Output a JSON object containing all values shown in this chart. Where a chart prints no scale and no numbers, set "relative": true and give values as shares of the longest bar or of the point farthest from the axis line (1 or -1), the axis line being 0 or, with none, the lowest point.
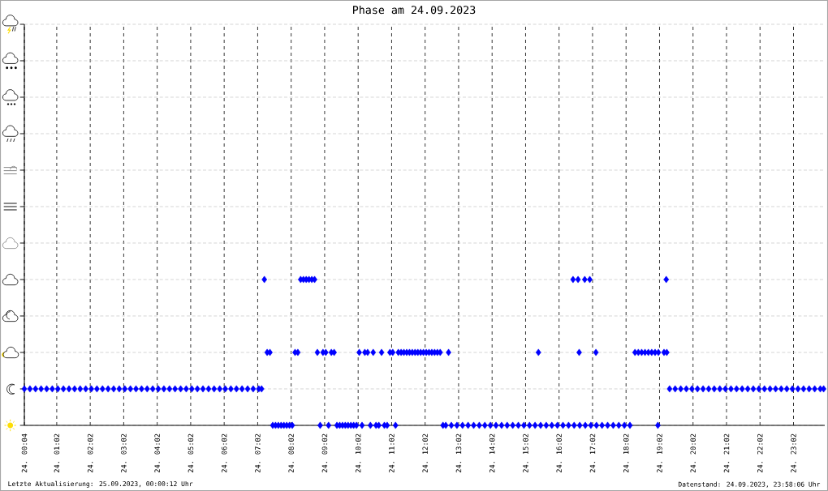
{
  "chart_data": {
    "type": "scatter",
    "title": "Phase am 24.09.2023",
    "annotations": [
      "Letzte Aktualisierung: 25.09.2023, 00:00:12 Uhr",
      "Datenstand: 24.09.2023, 23:58:06 Uhr"
    ],
    "x": [
      "2023-09-24T00:04",
      "2023-09-24T00:14",
      "2023-09-24T00:24",
      "2023-09-24T00:34",
      "2023-09-24T00:44",
      "2023-09-24T00:54",
      "2023-09-24T01:04",
      "2023-09-24T01:14",
      "2023-09-24T01:24",
      "2023-09-24T01:34",
      "2023-09-24T01:44",
      "2023-09-24T01:54",
      "2023-09-24T02:04",
      "2023-09-24T02:14",
      "2023-09-24T02:24",
      "2023-09-24T02:34",
      "2023-09-24T02:44",
      "2023-09-24T02:54",
      "2023-09-24T03:04",
      "2023-09-24T03:14",
      "2023-09-24T03:24",
      "2023-09-24T03:34",
      "2023-09-24T03:44",
      "2023-09-24T03:54",
      "2023-09-24T04:04",
      "2023-09-24T04:14",
      "2023-09-24T04:24",
      "2023-09-24T04:34",
      "2023-09-24T04:44",
      "2023-09-24T04:54",
      "2023-09-24T05:04",
      "2023-09-24T05:14",
      "2023-09-24T05:24",
      "2023-09-24T05:34",
      "2023-09-24T05:44",
      "2023-09-24T05:54",
      "2023-09-24T06:04",
      "2023-09-24T06:14",
      "2023-09-24T06:24",
      "2023-09-24T06:34",
      "2023-09-24T06:44",
      "2023-09-24T06:54",
      "2023-09-24T07:04",
      "2023-09-24T07:09",
      "2023-09-24T07:14",
      "2023-09-24T07:19",
      "2023-09-24T07:24",
      "2023-09-24T07:29",
      "2023-09-24T07:34",
      "2023-09-24T07:39",
      "2023-09-24T07:44",
      "2023-09-24T07:49",
      "2023-09-24T07:54",
      "2023-09-24T07:59",
      "2023-09-24T08:04",
      "2023-09-24T08:09",
      "2023-09-24T08:14",
      "2023-09-24T08:19",
      "2023-09-24T08:24",
      "2023-09-24T08:29",
      "2023-09-24T08:34",
      "2023-09-24T08:39",
      "2023-09-24T08:44",
      "2023-09-24T08:49",
      "2023-09-24T08:54",
      "2023-09-24T08:59",
      "2023-09-24T09:04",
      "2023-09-24T09:09",
      "2023-09-24T09:14",
      "2023-09-24T09:19",
      "2023-09-24T09:24",
      "2023-09-24T09:29",
      "2023-09-24T09:34",
      "2023-09-24T09:39",
      "2023-09-24T09:44",
      "2023-09-24T09:49",
      "2023-09-24T09:54",
      "2023-09-24T09:59",
      "2023-09-24T10:04",
      "2023-09-24T10:09",
      "2023-09-24T10:14",
      "2023-09-24T10:19",
      "2023-09-24T10:24",
      "2023-09-24T10:29",
      "2023-09-24T10:34",
      "2023-09-24T10:39",
      "2023-09-24T10:44",
      "2023-09-24T10:49",
      "2023-09-24T10:54",
      "2023-09-24T10:59",
      "2023-09-24T11:04",
      "2023-09-24T11:09",
      "2023-09-24T11:14",
      "2023-09-24T11:19",
      "2023-09-24T11:24",
      "2023-09-24T11:29",
      "2023-09-24T11:34",
      "2023-09-24T11:39",
      "2023-09-24T11:44",
      "2023-09-24T11:49",
      "2023-09-24T11:54",
      "2023-09-24T11:59",
      "2023-09-24T12:04",
      "2023-09-24T12:09",
      "2023-09-24T12:14",
      "2023-09-24T12:19",
      "2023-09-24T12:24",
      "2023-09-24T12:29",
      "2023-09-24T12:34",
      "2023-09-24T12:39",
      "2023-09-24T12:44",
      "2023-09-24T12:49",
      "2023-09-24T12:59",
      "2023-09-24T13:09",
      "2023-09-24T13:19",
      "2023-09-24T13:29",
      "2023-09-24T13:39",
      "2023-09-24T13:49",
      "2023-09-24T13:59",
      "2023-09-24T14:09",
      "2023-09-24T14:19",
      "2023-09-24T14:29",
      "2023-09-24T14:39",
      "2023-09-24T14:49",
      "2023-09-24T14:59",
      "2023-09-24T15:09",
      "2023-09-24T15:19",
      "2023-09-24T15:25",
      "2023-09-24T15:29",
      "2023-09-24T15:39",
      "2023-09-24T15:49",
      "2023-09-24T15:59",
      "2023-09-24T16:09",
      "2023-09-24T16:19",
      "2023-09-24T16:27",
      "2023-09-24T16:29",
      "2023-09-24T16:36",
      "2023-09-24T16:38",
      "2023-09-24T16:39",
      "2023-09-24T16:48",
      "2023-09-24T16:49",
      "2023-09-24T16:57",
      "2023-09-24T16:59",
      "2023-09-24T17:08",
      "2023-09-24T17:09",
      "2023-09-24T17:19",
      "2023-09-24T17:29",
      "2023-09-24T17:39",
      "2023-09-24T17:49",
      "2023-09-24T17:59",
      "2023-09-24T18:09",
      "2023-09-24T18:18",
      "2023-09-24T18:24",
      "2023-09-24T18:30",
      "2023-09-24T18:36",
      "2023-09-24T18:42",
      "2023-09-24T18:48",
      "2023-09-24T18:54",
      "2023-09-24T19:00",
      "2023-09-24T18:59",
      "2023-09-24T19:10",
      "2023-09-24T19:14",
      "2023-09-24T19:15",
      "2023-09-24T19:20",
      "2023-09-24T19:30",
      "2023-09-24T19:40",
      "2023-09-24T19:50",
      "2023-09-24T20:00",
      "2023-09-24T20:10",
      "2023-09-24T20:20",
      "2023-09-24T20:30",
      "2023-09-24T20:40",
      "2023-09-24T20:50",
      "2023-09-24T21:00",
      "2023-09-24T21:10",
      "2023-09-24T21:20",
      "2023-09-24T21:30",
      "2023-09-24T21:40",
      "2023-09-24T21:50",
      "2023-09-24T22:00",
      "2023-09-24T22:10",
      "2023-09-24T22:20",
      "2023-09-24T22:30",
      "2023-09-24T22:40",
      "2023-09-24T22:50",
      "2023-09-24T23:00",
      "2023-09-24T23:10",
      "2023-09-24T23:20",
      "2023-09-24T23:30",
      "2023-09-24T23:40",
      "2023-09-24T23:50",
      "2023-09-24T23:56"
    ],
    "relative": true,
    "values": [
      0.25,
      0.25,
      0.25,
      0.25,
      0.25,
      0.25,
      0.25,
      0.25,
      0.25,
      0.25,
      0.25,
      0.25,
      0.25,
      0.25,
      0.25,
      0.25,
      0.25,
      0.25,
      0.25,
      0.25,
      0.25,
      0.25,
      0.25,
      0.25,
      0.25,
      0.25,
      0.25,
      0.25,
      0.25,
      0.25,
      0.25,
      0.25,
      0.25,
      0.25,
      0.25,
      0.25,
      0.25,
      0.25,
      0.25,
      0.25,
      0.25,
      0.25,
      0.25,
      0.25,
      1,
      0.5,
      0.5,
      0,
      0,
      0,
      0,
      0,
      0,
      0,
      0,
      0.5,
      0.5,
      1,
      1,
      1,
      1,
      1,
      1,
      0.5,
      0,
      0.5,
      0.5,
      0,
      0.5,
      0.5,
      0,
      0,
      0,
      0,
      0,
      0,
      0,
      0,
      0.5,
      0,
      0.5,
      0.5,
      0,
      0.5,
      0,
      0,
      0.5,
      0,
      0,
      0.5,
      0.5,
      0,
      0.5,
      0.5,
      0.5,
      0.5,
      0.5,
      0.5,
      0.5,
      0.5,
      0.5,
      0.5,
      0.5,
      0.5,
      0.5,
      0.5,
      0.5,
      0.5,
      0,
      0,
      0.5,
      0,
      0,
      0,
      0,
      0,
      0,
      0,
      0,
      0,
      0,
      0,
      0,
      0,
      0,
      0,
      0,
      0.5,
      0,
      0,
      0,
      0,
      0,
      0,
      1,
      0,
      1,
      0.5,
      0,
      1,
      0,
      1,
      0,
      0.5,
      0,
      0,
      0,
      0,
      0,
      0,
      0,
      0.5,
      0.5,
      0.5,
      0.5,
      0.5,
      0.5,
      0.5,
      0.5,
      0,
      0.5,
      1,
      0.5,
      0.25,
      0.25,
      0.25,
      0.25,
      0.25,
      0.25,
      0.25,
      0.25,
      0.25,
      0.25,
      0.25,
      0.25,
      0.25,
      0.25,
      0.25,
      0.25,
      0.25,
      0.25,
      0.25,
      0.25,
      0.25,
      0.25,
      0.25,
      0.25,
      0.25,
      0.25,
      0.25,
      0.25,
      0.25
    ],
    "color": "#0000ff",
    "marker": "diamond",
    "grid": true,
    "xlim": [
      "2023-09-24T00:04",
      "2023-09-24T23:58"
    ],
    "xticks": [
      {
        "value": "2023-09-24T00:04",
        "label": "24. 00:04"
      },
      {
        "value": "2023-09-24T01:02",
        "label": "24. 01:02"
      },
      {
        "value": "2023-09-24T02:02",
        "label": "24. 02:02"
      },
      {
        "value": "2023-09-24T03:02",
        "label": "24. 03:02"
      },
      {
        "value": "2023-09-24T04:02",
        "label": "24. 04:02"
      },
      {
        "value": "2023-09-24T05:02",
        "label": "24. 05:02"
      },
      {
        "value": "2023-09-24T06:02",
        "label": "24. 06:02"
      },
      {
        "value": "2023-09-24T07:02",
        "label": "24. 07:02"
      },
      {
        "value": "2023-09-24T08:02",
        "label": "24. 08:02"
      },
      {
        "value": "2023-09-24T09:02",
        "label": "24. 09:02"
      },
      {
        "value": "2023-09-24T10:02",
        "label": "24. 10:02"
      },
      {
        "value": "2023-09-24T11:02",
        "label": "24. 11:02"
      },
      {
        "value": "2023-09-24T12:02",
        "label": "24. 12:02"
      },
      {
        "value": "2023-09-24T13:02",
        "label": "24. 13:02"
      },
      {
        "value": "2023-09-24T14:02",
        "label": "24. 14:02"
      },
      {
        "value": "2023-09-24T15:02",
        "label": "24. 15:02"
      },
      {
        "value": "2023-09-24T16:02",
        "label": "24. 16:02"
      },
      {
        "value": "2023-09-24T17:02",
        "label": "24. 17:02"
      },
      {
        "value": "2023-09-24T18:02",
        "label": "24. 18:02"
      },
      {
        "value": "2023-09-24T19:02",
        "label": "24. 19:02"
      },
      {
        "value": "2023-09-24T20:02",
        "label": "24. 20:02"
      },
      {
        "value": "2023-09-24T21:02",
        "label": "24. 21:02"
      },
      {
        "value": "2023-09-24T22:02",
        "label": "24. 22:02"
      },
      {
        "value": "2023-09-24T23:02",
        "label": "24. 23:02"
      }
    ]
  }
}
